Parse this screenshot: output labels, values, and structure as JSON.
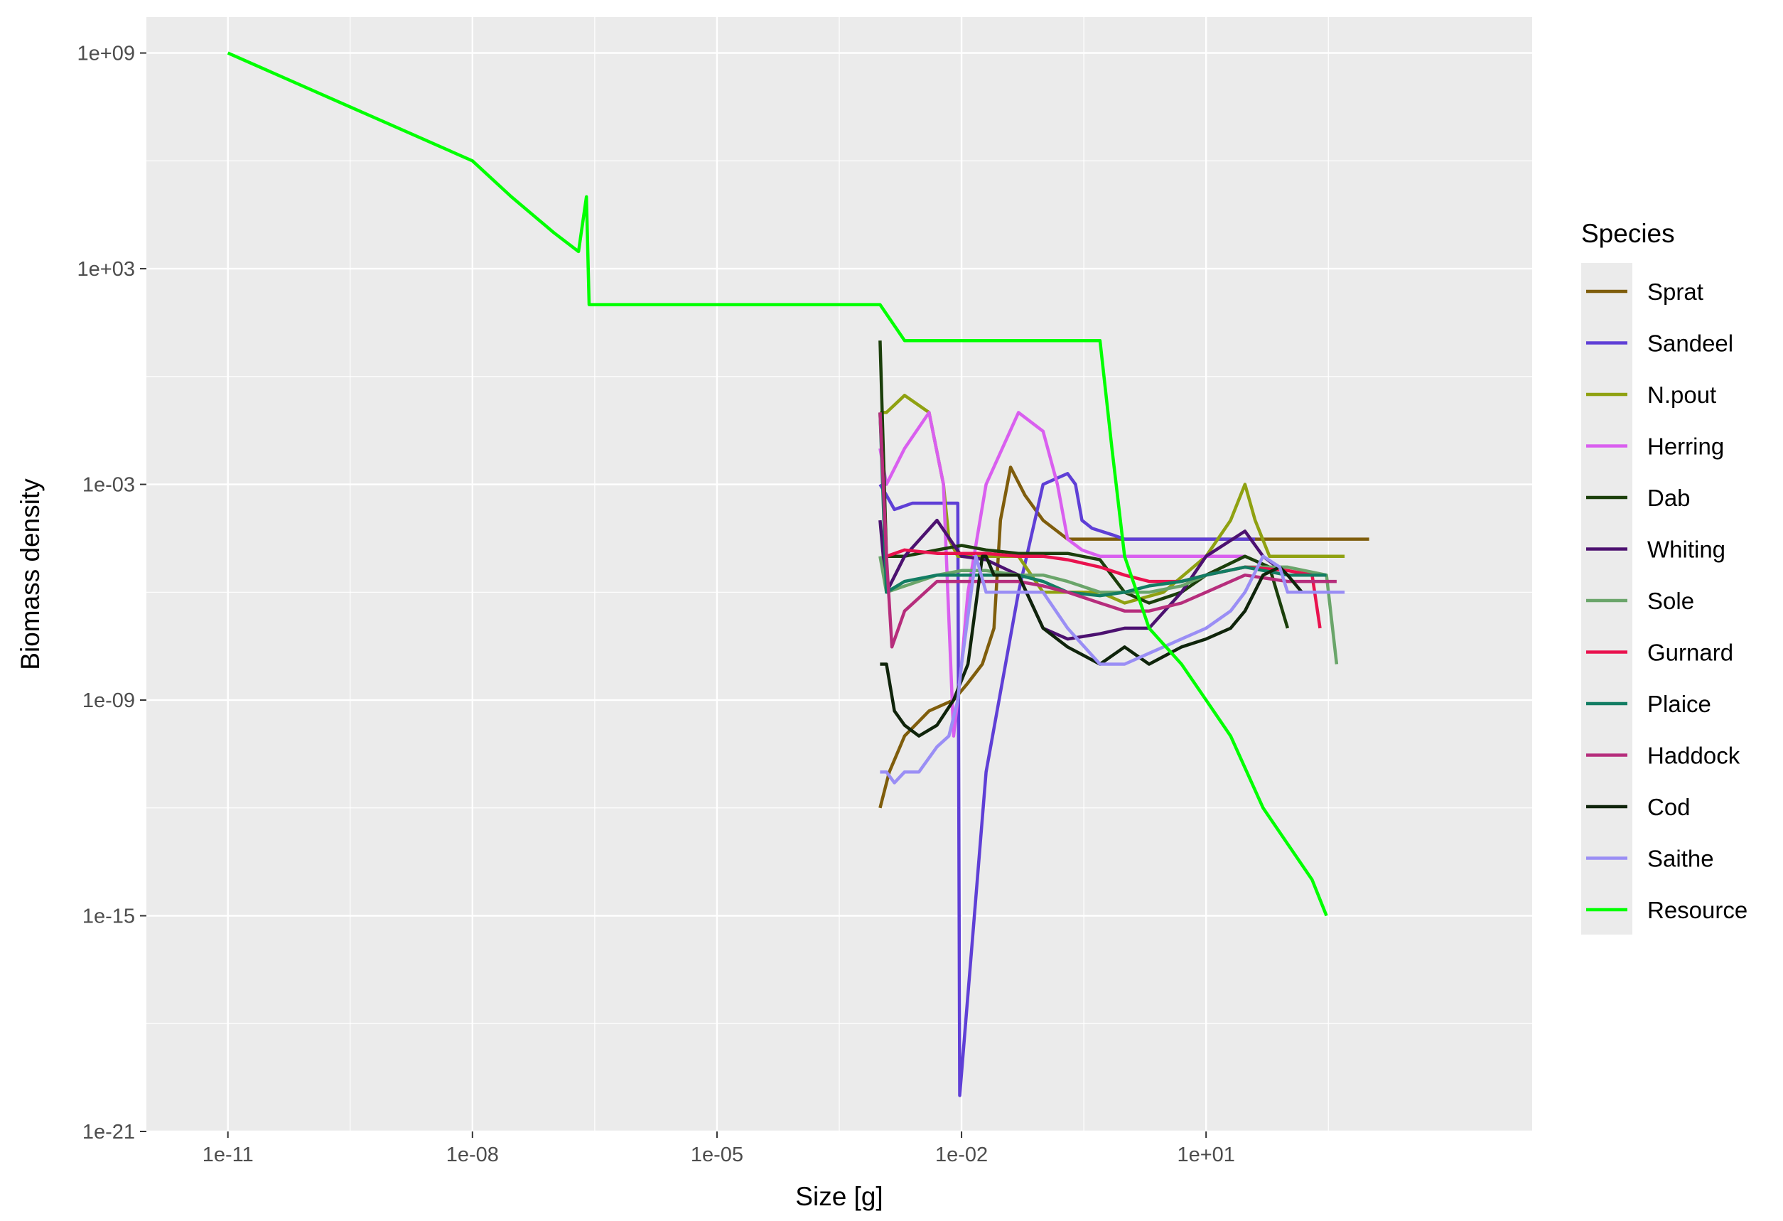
{
  "chart_data": {
    "type": "line",
    "title": "",
    "xlabel": "Size [g]",
    "ylabel": "Biomass density",
    "x_scale": "log10",
    "y_scale": "log10",
    "xlim": [
      1e-12,
      100000.0
    ],
    "ylim": [
      1e-21,
      10000000000.0
    ],
    "x_ticks": [
      1e-11,
      1e-08,
      1e-05,
      0.01,
      10.0
    ],
    "x_tick_labels": [
      "1e-11",
      "1e-08",
      "1e-05",
      "1e-02",
      "1e+01"
    ],
    "y_ticks": [
      1e-21,
      1e-15,
      1e-09,
      0.001,
      1000.0,
      1000000000.0
    ],
    "y_tick_labels": [
      "1e-21",
      "1e-15",
      "1e-09",
      "1e-03",
      "1e+03",
      "1e+09"
    ],
    "grid": true,
    "legend_title": "Species",
    "legend_position": "right",
    "series": [
      {
        "name": "Sprat",
        "color": "#7f5d0c",
        "x": [
          0.001,
          0.0013,
          0.002,
          0.004,
          0.008,
          0.012,
          0.018,
          0.025,
          0.03,
          0.04,
          0.06,
          0.1,
          0.2,
          0.5,
          1,
          3,
          10,
          30,
          100,
          300,
          1000
        ],
        "y": [
          1e-12,
          1e-11,
          1e-10,
          5e-10,
          1e-09,
          3e-09,
          1e-08,
          1e-07,
          0.0001,
          0.003,
          0.0005,
          0.0001,
          3e-05,
          3e-05,
          3e-05,
          3e-05,
          3e-05,
          3e-05,
          3e-05,
          3e-05,
          3e-05
        ]
      },
      {
        "name": "Sandeel",
        "color": "#5f3fd6",
        "x": [
          0.001,
          0.0012,
          0.0015,
          0.0025,
          0.004,
          0.006,
          0.009,
          0.0095,
          0.02,
          0.05,
          0.1,
          0.2,
          0.25,
          0.3,
          0.4,
          0.7,
          1,
          2,
          5,
          10,
          40
        ],
        "y": [
          0.001,
          0.0005,
          0.0002,
          0.0003,
          0.0003,
          0.0003,
          0.0003,
          1e-20,
          1e-11,
          1e-06,
          0.001,
          0.002,
          0.001,
          0.0001,
          6e-05,
          4e-05,
          3e-05,
          3e-05,
          3e-05,
          3e-05,
          3e-05
        ]
      },
      {
        "name": "N.pout",
        "color": "#8fa111",
        "x": [
          0.001,
          0.0012,
          0.002,
          0.004,
          0.006,
          0.007,
          0.009,
          0.012,
          0.02,
          0.05,
          0.1,
          0.2,
          0.5,
          1,
          3,
          10,
          20,
          30,
          40,
          60,
          100,
          200,
          500
        ],
        "y": [
          0.1,
          0.1,
          0.3,
          0.1,
          0.001,
          3e-05,
          1e-05,
          1e-05,
          1e-05,
          1e-05,
          1e-06,
          1e-06,
          1e-06,
          5e-07,
          1e-06,
          1e-05,
          0.0001,
          0.001,
          0.0001,
          1e-05,
          1e-05,
          1e-05,
          1e-05
        ]
      },
      {
        "name": "Herring",
        "color": "#d95fef",
        "x": [
          0.001,
          0.0012,
          0.002,
          0.004,
          0.006,
          0.008,
          0.01,
          0.012,
          0.02,
          0.05,
          0.1,
          0.15,
          0.2,
          0.3,
          0.5,
          1,
          2,
          5,
          10,
          30
        ],
        "y": [
          0.01,
          0.001,
          0.01,
          0.1,
          0.001,
          1e-10,
          1e-08,
          1e-06,
          0.001,
          0.1,
          0.03,
          0.001,
          3e-05,
          1.5e-05,
          1e-05,
          1e-05,
          1e-05,
          1e-05,
          1e-05,
          1e-05
        ]
      },
      {
        "name": "Dab",
        "color": "#1b3f0b",
        "x": [
          0.001,
          0.0012,
          0.002,
          0.005,
          0.01,
          0.02,
          0.05,
          0.1,
          0.2,
          0.5,
          1,
          2,
          5,
          10,
          30,
          60,
          100
        ],
        "y": [
          10,
          1e-05,
          1e-05,
          1.5e-05,
          2e-05,
          1.5e-05,
          1.2e-05,
          1.2e-05,
          1.2e-05,
          8e-06,
          1e-06,
          5e-07,
          1e-06,
          3e-06,
          1e-05,
          5e-06,
          1e-07
        ]
      },
      {
        "name": "Whiting",
        "color": "#4c1170",
        "x": [
          0.001,
          0.0012,
          0.002,
          0.005,
          0.01,
          0.02,
          0.05,
          0.1,
          0.2,
          0.5,
          1,
          2,
          5,
          10,
          30,
          50,
          100
        ],
        "y": [
          0.0001,
          1e-06,
          1e-05,
          0.0001,
          1e-05,
          8e-06,
          3e-06,
          1e-07,
          5e-08,
          7e-08,
          1e-07,
          1e-07,
          1e-06,
          1e-05,
          5e-05,
          1e-05,
          3e-06
        ]
      },
      {
        "name": "Sole",
        "color": "#6aa56a",
        "x": [
          0.001,
          0.0012,
          0.005,
          0.01,
          0.02,
          0.05,
          0.1,
          0.2,
          0.5,
          1,
          2,
          5,
          10,
          30,
          100,
          300,
          400
        ],
        "y": [
          1e-05,
          1e-06,
          3e-06,
          4e-06,
          4e-06,
          3e-06,
          3e-06,
          2e-06,
          1e-06,
          1e-06,
          1e-06,
          1.5e-06,
          3e-06,
          5e-06,
          5e-06,
          3e-06,
          1e-08
        ]
      },
      {
        "name": "Gurnard",
        "color": "#e9124e",
        "x": [
          0.001,
          0.0012,
          0.002,
          0.005,
          0.01,
          0.02,
          0.05,
          0.1,
          0.2,
          0.5,
          1,
          2,
          5,
          10,
          30,
          100,
          200,
          250
        ],
        "y": [
          0.1,
          1e-05,
          1.5e-05,
          1.2e-05,
          1.2e-05,
          1.2e-05,
          1e-05,
          1e-05,
          8e-06,
          5e-06,
          3e-06,
          2e-06,
          2e-06,
          3e-06,
          5e-06,
          4e-06,
          3e-06,
          1e-07
        ]
      },
      {
        "name": "Plaice",
        "color": "#127d63",
        "x": [
          0.001,
          0.0012,
          0.002,
          0.005,
          0.01,
          0.02,
          0.05,
          0.1,
          0.2,
          0.5,
          1,
          2,
          5,
          10,
          30,
          100,
          300
        ],
        "y": [
          0.1,
          1e-06,
          2e-06,
          3e-06,
          3e-06,
          3e-06,
          3e-06,
          2e-06,
          1e-06,
          8e-07,
          1e-06,
          1.5e-06,
          2e-06,
          3e-06,
          5e-06,
          3e-06,
          3e-06
        ]
      },
      {
        "name": "Haddock",
        "color": "#b62d7c",
        "x": [
          0.001,
          0.0012,
          0.0014,
          0.002,
          0.005,
          0.01,
          0.02,
          0.05,
          0.1,
          0.2,
          0.5,
          1,
          2,
          5,
          10,
          30,
          100,
          300,
          400
        ],
        "y": [
          0.1,
          1e-05,
          3e-08,
          3e-07,
          2e-06,
          2e-06,
          2e-06,
          2e-06,
          1.5e-06,
          1e-06,
          5e-07,
          3e-07,
          3e-07,
          5e-07,
          1e-06,
          3e-06,
          2e-06,
          2e-06,
          2e-06
        ]
      },
      {
        "name": "Cod",
        "color": "#0f240b",
        "x": [
          0.001,
          0.0012,
          0.0015,
          0.002,
          0.003,
          0.005,
          0.008,
          0.012,
          0.018,
          0.02,
          0.025,
          0.03,
          0.05,
          0.1,
          0.2,
          0.5,
          1,
          2,
          5,
          10,
          20,
          30,
          50,
          80,
          100,
          150
        ],
        "y": [
          1e-08,
          1e-08,
          5e-10,
          2e-10,
          1e-10,
          2e-10,
          1e-09,
          1e-08,
          1e-05,
          1e-05,
          3e-06,
          3e-06,
          3e-06,
          1e-07,
          3e-08,
          1e-08,
          3e-08,
          1e-08,
          3e-08,
          5e-08,
          1e-07,
          3e-07,
          3e-06,
          5e-06,
          3e-06,
          1e-06
        ]
      },
      {
        "name": "Saithe",
        "color": "#9a8ef5",
        "x": [
          0.001,
          0.0012,
          0.0015,
          0.002,
          0.003,
          0.005,
          0.007,
          0.009,
          0.01,
          0.015,
          0.02,
          0.05,
          0.1,
          0.2,
          0.5,
          1,
          2,
          5,
          10,
          20,
          30,
          50,
          80,
          100,
          200,
          500
        ],
        "y": [
          1e-11,
          1e-11,
          5e-12,
          1e-11,
          1e-11,
          5e-11,
          1e-10,
          1e-09,
          1e-08,
          1e-05,
          1e-06,
          1e-06,
          1e-06,
          1e-07,
          1e-08,
          1e-08,
          2e-08,
          5e-08,
          1e-07,
          3e-07,
          1e-06,
          1e-05,
          5e-06,
          1e-06,
          1e-06,
          1e-06
        ]
      },
      {
        "name": "Resource",
        "color": "#00ff00",
        "x": [
          1e-11,
          1e-10,
          1e-09,
          1e-08,
          3e-08,
          1e-07,
          2e-07,
          2.5e-07,
          2.7e-07,
          3e-07,
          5e-07,
          1e-06,
          2e-06,
          5e-06,
          1e-05,
          2e-05,
          5e-05,
          0.0001,
          0.0003,
          0.001,
          0.002,
          0.005,
          0.01,
          0.03,
          0.1,
          0.3,
          0.5,
          0.7,
          1,
          2,
          5,
          10,
          20,
          50,
          100,
          200,
          300
        ],
        "y": [
          1000000000.0,
          100000000.0,
          10000000.0,
          1000000.0,
          100000.0,
          10000.0,
          3000.0,
          100000.0,
          100.0,
          100.0,
          100.0,
          100.0,
          100.0,
          100.0,
          100.0,
          100.0,
          100.0,
          100.0,
          100.0,
          100.0,
          10.0,
          10.0,
          10.0,
          10.0,
          10.0,
          10.0,
          10.0,
          0.01,
          1e-05,
          1e-07,
          1e-08,
          1e-09,
          1e-10,
          1e-12,
          1e-13,
          1e-14,
          1e-15
        ]
      }
    ]
  }
}
